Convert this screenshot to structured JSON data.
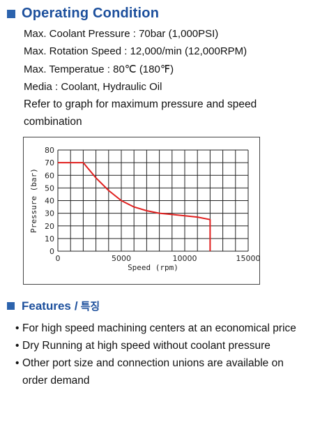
{
  "operating": {
    "title": "Operating Condition",
    "specs": [
      "Max. Coolant Pressure : 70bar (1,000PSI)",
      "Max. Rotation Speed : 12,000/min (12,000RPM)",
      "Max. Temperatue : 80℃ (180℉)",
      "Media : Coolant, Hydraulic Oil"
    ],
    "note": "Refer to graph for maximum pressure and speed combination"
  },
  "chart_data": {
    "type": "line",
    "xlabel": "Speed (rpm)",
    "ylabel": "Pressure (bar)",
    "xlim": [
      0,
      15000
    ],
    "ylim": [
      0,
      80
    ],
    "x_ticks": [
      0,
      5000,
      10000,
      15000
    ],
    "y_ticks": [
      0,
      10,
      20,
      30,
      40,
      50,
      60,
      70,
      80
    ],
    "grid": true,
    "series": [
      {
        "color": "#e0201f",
        "x": [
          0,
          2000,
          3000,
          4000,
          5000,
          6000,
          7000,
          8000,
          9000,
          10000,
          11000,
          12000,
          12000
        ],
        "y": [
          70,
          70,
          58,
          48,
          40,
          35,
          32,
          30,
          29,
          28,
          27,
          25,
          0
        ]
      }
    ]
  },
  "features": {
    "title": "Features",
    "separator": "/",
    "title_ko": "특징",
    "bullet": "•",
    "items": [
      "For high speed machining centers at an economical price",
      "Dry Running at high speed without coolant pressure",
      "Other port size and connection unions are available on order demand"
    ]
  },
  "colors": {
    "accent": "#1c4f9c",
    "bullet_square": "#2c63ad",
    "curve": "#e0201f"
  }
}
